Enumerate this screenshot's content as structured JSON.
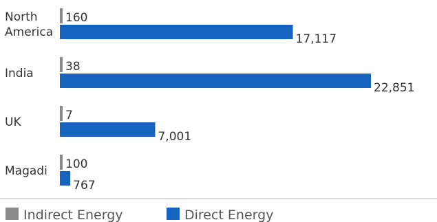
{
  "chart_data": {
    "type": "bar",
    "orientation": "horizontal",
    "categories": [
      [
        "North",
        "America"
      ],
      [
        "India"
      ],
      [
        "UK"
      ],
      [
        "Magadi"
      ]
    ],
    "series": [
      {
        "name": "Indirect Energy",
        "values": [
          160,
          38,
          7,
          100
        ],
        "labels": [
          "160",
          "38",
          "7",
          "100"
        ]
      },
      {
        "name": "Direct Energy",
        "values": [
          17117,
          22851,
          7001,
          767
        ],
        "labels": [
          "17,117",
          "22,851",
          "7,001",
          "767"
        ]
      }
    ],
    "legend_position": "bottom-left",
    "grid": false,
    "xlim": [
      0,
      22851
    ]
  },
  "colors": {
    "indirect": "#8a8a8a",
    "direct": "#1565c0",
    "divider": "#b3b3b3"
  }
}
